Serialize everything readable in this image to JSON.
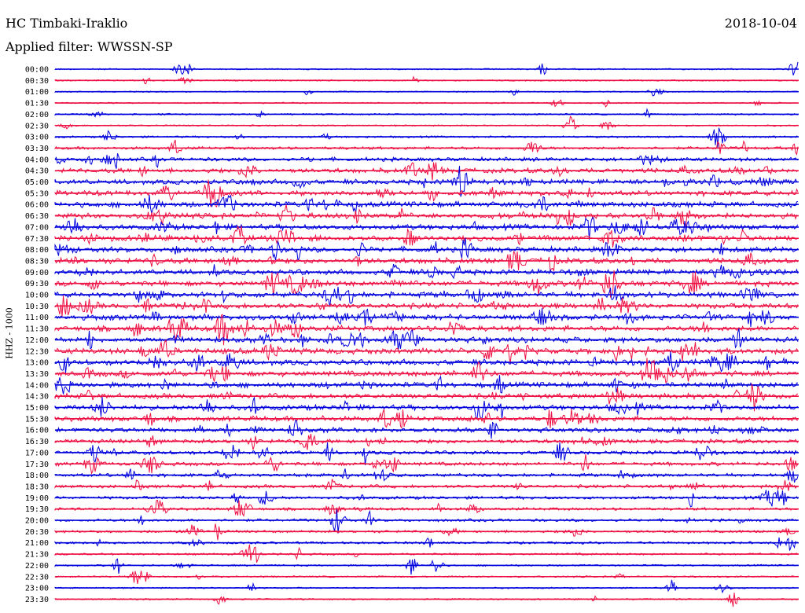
{
  "header": {
    "station": "HC Timbaki-Iraklio",
    "date": "2018-10-04",
    "filter": "Applied filter: WWSSN-SP"
  },
  "chart_data": {
    "type": "line",
    "title": "HC Timbaki-Iraklio",
    "ylabel": "HHZ - 1000",
    "xlabel": "",
    "trace_labels": [
      "00:00",
      "00:30",
      "01:00",
      "01:30",
      "02:00",
      "02:30",
      "03:00",
      "03:30",
      "04:00",
      "04:30",
      "05:00",
      "05:30",
      "06:00",
      "06:30",
      "07:00",
      "07:30",
      "08:00",
      "08:30",
      "09:00",
      "09:30",
      "10:00",
      "10:30",
      "11:00",
      "11:30",
      "12:00",
      "12:30",
      "13:00",
      "13:30",
      "14:00",
      "14:30",
      "15:00",
      "15:30",
      "16:00",
      "16:30",
      "17:00",
      "17:30",
      "18:00",
      "18:30",
      "19:00",
      "19:30",
      "20:00",
      "20:30",
      "21:00",
      "21:30",
      "22:00",
      "22:30",
      "23:00",
      "23:30"
    ],
    "series_colors": [
      "#0000dd",
      "#ee1144"
    ],
    "relative_activity": [
      0.08,
      0.08,
      0.05,
      0.06,
      0.12,
      0.08,
      0.18,
      0.35,
      0.55,
      0.7,
      0.75,
      0.8,
      0.85,
      0.85,
      0.85,
      0.85,
      0.85,
      0.85,
      0.8,
      0.85,
      0.85,
      0.85,
      0.85,
      0.85,
      0.85,
      0.9,
      0.9,
      0.85,
      0.8,
      0.8,
      0.8,
      0.75,
      0.7,
      0.6,
      0.55,
      0.5,
      0.45,
      0.45,
      0.4,
      0.35,
      0.35,
      0.3,
      0.25,
      0.2,
      0.15,
      0.12,
      0.1,
      0.08
    ],
    "grid": false
  }
}
